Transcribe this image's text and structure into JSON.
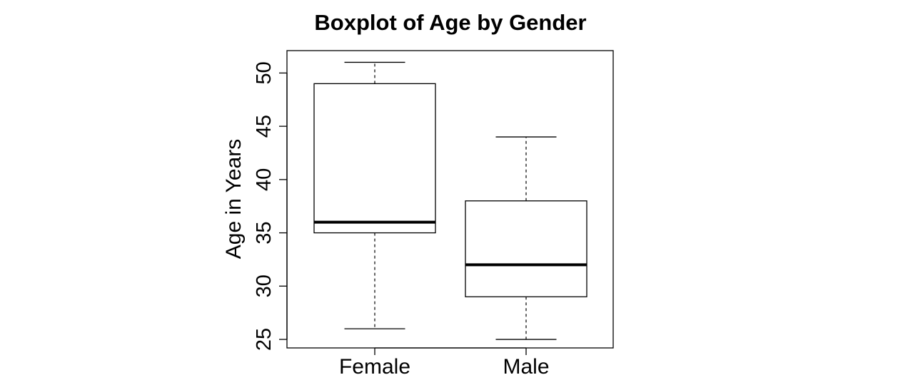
{
  "chart_data": {
    "type": "boxplot",
    "title": "Boxplot of Age by Gender",
    "xlabel": "",
    "ylabel": "Age in Years",
    "categories": [
      "Female",
      "Male"
    ],
    "boxes": [
      {
        "category": "Female",
        "whisker_low": 26,
        "q1": 35,
        "median": 36,
        "q3": 49,
        "whisker_high": 51
      },
      {
        "category": "Male",
        "whisker_low": 25,
        "q1": 29,
        "median": 32,
        "q3": 38,
        "whisker_high": 44
      }
    ],
    "ylim": [
      24.2,
      52.1
    ],
    "yticks": [
      25,
      30,
      35,
      40,
      45,
      50
    ],
    "ytick_labels": [
      "25",
      "30",
      "35",
      "40",
      "45",
      "50"
    ],
    "grid": false,
    "legend": "none",
    "colors": {
      "box_fill": "#ffffff",
      "stroke": "#000000"
    }
  }
}
